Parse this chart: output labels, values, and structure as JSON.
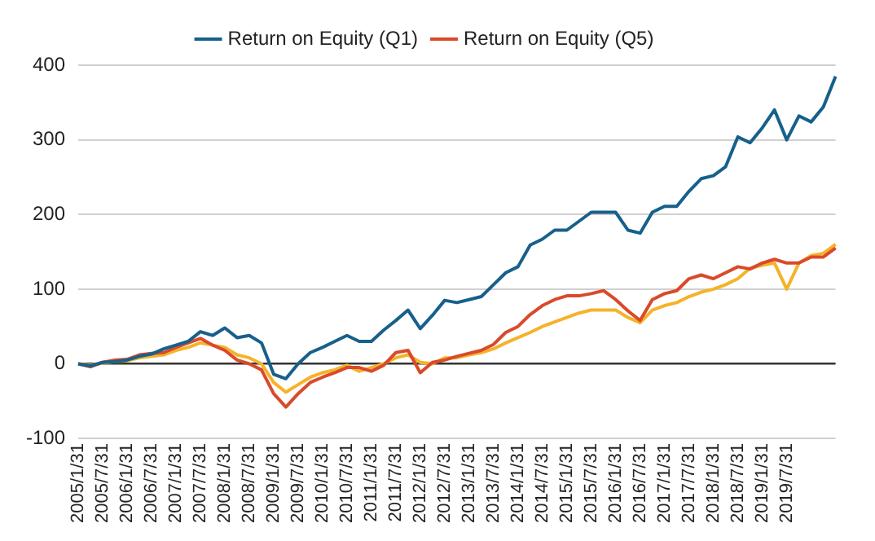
{
  "chart_data": {
    "type": "line",
    "categories": [
      "2005/1/31",
      null,
      "2005/7/31",
      null,
      "2006/1/31",
      null,
      "2006/7/31",
      null,
      "2007/1/31",
      null,
      "2007/7/31",
      null,
      "2008/1/31",
      null,
      "2008/7/31",
      null,
      "2009/1/31",
      null,
      "2009/7/31",
      null,
      "2010/1/31",
      null,
      "2010/7/31",
      null,
      "2011/1/31",
      null,
      "2011/7/31",
      null,
      "2012/1/31",
      null,
      "2012/7/31",
      null,
      "2013/1/31",
      null,
      "2013/7/31",
      null,
      "2014/1/31",
      null,
      "2014/7/31",
      null,
      "2015/1/31",
      null,
      "2015/7/31",
      null,
      "2016/1/31",
      null,
      "2016/7/31",
      null,
      "2017/1/31",
      null,
      "2017/7/31",
      null,
      "2018/1/31",
      null,
      "2018/7/31",
      null,
      "2019/1/31",
      null,
      "2019/7/31",
      null,
      null,
      null,
      null
    ],
    "series": [
      {
        "name": "Return on Equity (Q1)",
        "color": "#17608c",
        "values": [
          0,
          -3,
          2,
          3,
          5,
          10,
          13,
          20,
          25,
          30,
          43,
          38,
          48,
          35,
          38,
          28,
          -14,
          -20,
          0,
          15,
          22,
          30,
          38,
          30,
          30,
          45,
          58,
          72,
          47,
          65,
          85,
          82,
          86,
          90,
          106,
          122,
          130,
          159,
          167,
          179,
          179,
          191,
          203,
          203,
          203,
          179,
          175,
          203,
          211,
          211,
          231,
          248,
          252,
          264,
          304,
          296,
          316,
          340,
          300,
          332,
          324,
          344,
          385
        ]
      },
      {
        "name": "Return on Equity (Q5)",
        "color": "#d94a2b",
        "values": [
          0,
          -4,
          2,
          5,
          6,
          12,
          14,
          15,
          22,
          28,
          34,
          25,
          18,
          5,
          0,
          -8,
          -40,
          -58,
          -40,
          -25,
          -18,
          -12,
          -5,
          -5,
          -10,
          -2,
          15,
          18,
          -12,
          2,
          5,
          10,
          14,
          18,
          26,
          42,
          50,
          66,
          78,
          86,
          91,
          91,
          94,
          98,
          86,
          71,
          58,
          86,
          94,
          98,
          114,
          119,
          114,
          122,
          130,
          127,
          135,
          140,
          135,
          135,
          143,
          143,
          155
        ]
      },
      {
        "color": "#f5b32a",
        "values": [
          0,
          -2,
          1,
          3,
          4,
          8,
          10,
          12,
          18,
          22,
          28,
          25,
          22,
          12,
          8,
          0,
          -25,
          -38,
          -28,
          -18,
          -12,
          -8,
          -2,
          -10,
          -5,
          0,
          8,
          12,
          2,
          0,
          8,
          8,
          12,
          15,
          20,
          28,
          35,
          42,
          50,
          56,
          62,
          68,
          72,
          72,
          72,
          62,
          55,
          72,
          78,
          82,
          90,
          96,
          100,
          106,
          114,
          128,
          132,
          135,
          100,
          135,
          145,
          148,
          160
        ]
      }
    ],
    "ylim": [
      -100,
      400
    ],
    "yticks": [
      -100,
      0,
      100,
      200,
      300,
      400
    ],
    "grid": "y",
    "legend": "top",
    "marker": "none",
    "line_style": "solid"
  }
}
